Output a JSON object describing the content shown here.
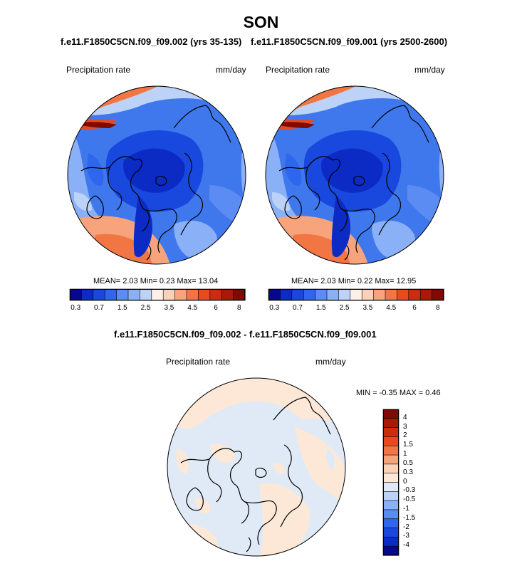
{
  "title": "SON",
  "panels": [
    {
      "run_title": "f.e11.F1850C5CN.f09_f09.002 (yrs 35-135)",
      "variable": "Precipitation rate",
      "units": "mm/day",
      "stats": "MEAN=   2.03  Min=   0.23  Max=  13.04"
    },
    {
      "run_title": "f.e11.F1850C5CN.f09_f09.001 (yrs 2500-2600)",
      "variable": "Precipitation rate",
      "units": "mm/day",
      "stats": "MEAN=   2.03  Min=   0.22  Max=  12.95"
    }
  ],
  "abs_colorbar": {
    "colors": [
      "#08088f",
      "#0b2bc4",
      "#1848de",
      "#2e66ee",
      "#5a8cf4",
      "#8ab0f7",
      "#bcd2f7",
      "#fdf0e8",
      "#fbd2b6",
      "#f7a47c",
      "#f27544",
      "#e84a1e",
      "#cc2d0b",
      "#a81a05",
      "#7f0a00"
    ],
    "tick_labels": [
      "0.3",
      "0.7",
      "1.5",
      "2.5",
      "3.5",
      "4.5",
      "6",
      "8"
    ]
  },
  "diff_panel": {
    "title": "f.e11.F1850C5CN.f09_f09.002 - f.e11.F1850C5CN.f09_f09.001",
    "variable": "Precipitation rate",
    "units": "mm/day",
    "minmax": "MIN =  -0.35 MAX =   0.46"
  },
  "diff_colorbar": {
    "colors": [
      "#7f0a00",
      "#a81a05",
      "#cc2d0b",
      "#e84a1e",
      "#f27544",
      "#f7a47c",
      "#fbd2b6",
      "#fde8d8",
      "#dfeaf6",
      "#bcd2f7",
      "#8ab0f7",
      "#5a8cf4",
      "#2e66ee",
      "#1848de",
      "#0b2bc4",
      "#08088f"
    ],
    "tick_labels": [
      "4",
      "3",
      "2",
      "1.5",
      "1",
      "0.5",
      "0.3",
      "0",
      "-0.3",
      "-0.5",
      "-1",
      "-1.5",
      "-2",
      "-3",
      "-4"
    ]
  }
}
